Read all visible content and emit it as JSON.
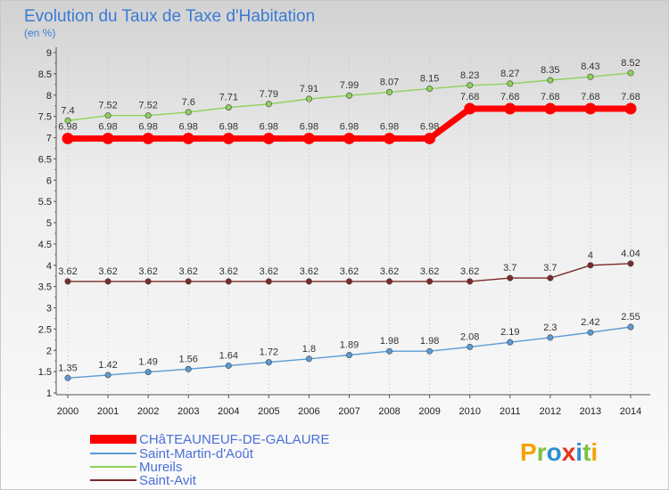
{
  "chart_data": {
    "type": "line",
    "title": "Evolution du Taux de Taxe d'Habitation",
    "subtitle": "(en %)",
    "x": [
      2000,
      2001,
      2002,
      2003,
      2004,
      2005,
      2006,
      2007,
      2008,
      2009,
      2010,
      2011,
      2012,
      2013,
      2014
    ],
    "ylim": [
      1,
      9
    ],
    "yticks": [
      "1",
      "1.5",
      "2",
      "2.5",
      "3",
      "3.5",
      "4",
      "4.5",
      "5",
      "5.5",
      "6",
      "6.5",
      "7",
      "7.5",
      "8",
      "8.5",
      "9"
    ],
    "grid": "vertical dotted",
    "legend_position": "bottom-left",
    "series": [
      {
        "name": "CHâTEAUNEUF-DE-GALAURE",
        "color": "#ff0000",
        "values": [
          6.98,
          6.98,
          6.98,
          6.98,
          6.98,
          6.98,
          6.98,
          6.98,
          6.98,
          6.98,
          7.68,
          7.68,
          7.68,
          7.68,
          7.68
        ],
        "labels": [
          "6.98",
          "6.98",
          "6.98",
          "6.98",
          "6.98",
          "6.98",
          "6.98",
          "6.98",
          "6.98",
          "6.98",
          "7.68",
          "7.68",
          "7.68",
          "7.68",
          "7.68"
        ]
      },
      {
        "name": "Saint-Martin-d'Août",
        "color": "#5b9bd5",
        "values": [
          1.35,
          1.42,
          1.49,
          1.56,
          1.64,
          1.72,
          1.8,
          1.89,
          1.98,
          1.98,
          2.08,
          2.19,
          2.3,
          2.42,
          2.55
        ],
        "labels": [
          "1.35",
          "1.42",
          "1.49",
          "1.56",
          "1.64",
          "1.72",
          "1.8",
          "1.89",
          "1.98",
          "1.98",
          "2.08",
          "2.19",
          "2.3",
          "2.42",
          "2.55"
        ]
      },
      {
        "name": "Mureils",
        "color": "#8fd15a",
        "values": [
          7.4,
          7.52,
          7.52,
          7.6,
          7.71,
          7.79,
          7.91,
          7.99,
          8.07,
          8.15,
          8.23,
          8.27,
          8.35,
          8.43,
          8.52
        ],
        "labels": [
          "7.4",
          "7.52",
          "7.52",
          "7.6",
          "7.71",
          "7.79",
          "7.91",
          "7.99",
          "8.07",
          "8.15",
          "8.23",
          "8.27",
          "8.35",
          "8.43",
          "8.52"
        ]
      },
      {
        "name": "Saint-Avit",
        "color": "#7a2a2a",
        "values": [
          3.62,
          3.62,
          3.62,
          3.62,
          3.62,
          3.62,
          3.62,
          3.62,
          3.62,
          3.62,
          3.62,
          3.7,
          3.7,
          4,
          4.04
        ],
        "labels": [
          "3.62",
          "3.62",
          "3.62",
          "3.62",
          "3.62",
          "3.62",
          "3.62",
          "3.62",
          "3.62",
          "3.62",
          "3.62",
          "3.7",
          "3.7",
          "4",
          "4.04"
        ]
      }
    ]
  },
  "logo": {
    "text": "Proxiti",
    "letter_colors": [
      "#f4a300",
      "#7cc242",
      "#2a8fd0",
      "#e8351e",
      "#2a8fd0",
      "#7cc242",
      "#f4a300"
    ]
  }
}
